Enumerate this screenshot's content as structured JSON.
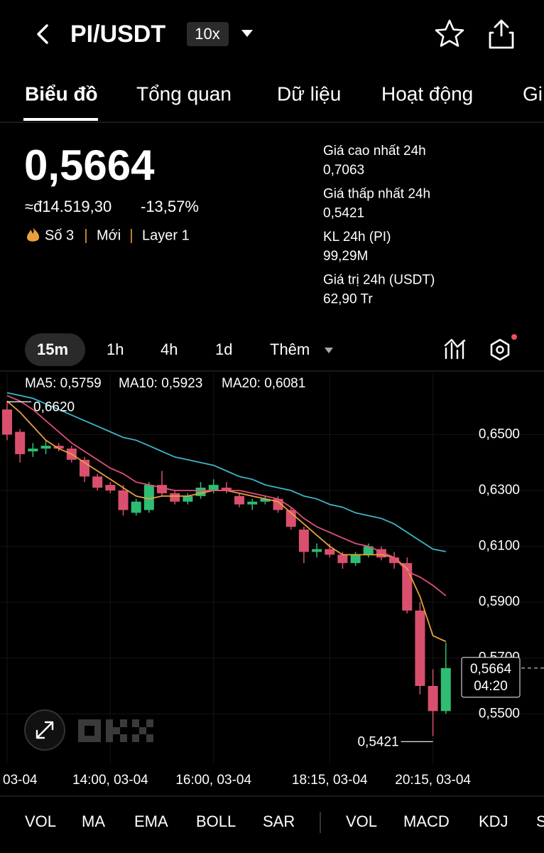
{
  "header": {
    "pair": "PI/USDT",
    "leverage": "10x"
  },
  "tabs": [
    "Biểu đồ",
    "Tổng quan",
    "Dữ liệu",
    "Hoạt động",
    "Gi"
  ],
  "ticker": {
    "price": "0,5664",
    "fiat": "≈đ14.519,30",
    "change": "-13,57%",
    "tags": [
      "Số 3",
      "Mới",
      "Layer 1"
    ],
    "stats": [
      {
        "label": "Giá cao nhất 24h",
        "value": "0,7063"
      },
      {
        "label": "Giá thấp nhất 24h",
        "value": "0,5421"
      },
      {
        "label": "KL 24h (PI)",
        "value": "99,29M"
      },
      {
        "label": "Giá trị 24h (USDT)",
        "value": "62,90 Tr"
      }
    ]
  },
  "intervals": [
    "15m",
    "1h",
    "4h",
    "1d",
    "Thêm"
  ],
  "indicators": [
    "VOL",
    "MA",
    "EMA",
    "BOLL",
    "SAR",
    "VOL",
    "MACD",
    "KDJ",
    "S"
  ],
  "chart_data": {
    "type": "candlestick",
    "categories": [
      "03-04",
      null,
      null,
      null,
      null,
      null,
      null,
      null,
      "14:00, 03-04",
      null,
      null,
      null,
      null,
      null,
      null,
      null,
      "16:00, 03-04",
      null,
      null,
      null,
      null,
      null,
      null,
      null,
      null,
      "18:15, 03-04",
      null,
      null,
      null,
      null,
      null,
      null,
      null,
      "20:15, 03-04",
      null
    ],
    "open": [
      0.659,
      0.651,
      0.644,
      0.645,
      0.646,
      0.645,
      0.641,
      0.635,
      0.632,
      0.63,
      0.622,
      0.623,
      0.632,
      0.629,
      0.626,
      0.628,
      0.63,
      0.631,
      0.628,
      0.625,
      0.626,
      0.627,
      0.623,
      0.616,
      0.608,
      0.609,
      0.607,
      0.604,
      0.607,
      0.609,
      0.606,
      0.604,
      0.587,
      0.56,
      0.551
    ],
    "high": [
      0.662,
      0.652,
      0.647,
      0.648,
      0.647,
      0.646,
      0.642,
      0.636,
      0.633,
      0.632,
      0.627,
      0.633,
      0.637,
      0.63,
      0.629,
      0.633,
      0.634,
      0.633,
      0.629,
      0.627,
      0.628,
      0.628,
      0.624,
      0.617,
      0.611,
      0.611,
      0.608,
      0.608,
      0.611,
      0.61,
      0.608,
      0.606,
      0.59,
      0.566,
      0.5755
    ],
    "low": [
      0.648,
      0.64,
      0.642,
      0.643,
      0.644,
      0.64,
      0.633,
      0.63,
      0.629,
      0.621,
      0.621,
      0.622,
      0.628,
      0.625,
      0.625,
      0.627,
      0.629,
      0.629,
      0.624,
      0.623,
      0.625,
      0.622,
      0.616,
      0.604,
      0.606,
      0.606,
      0.602,
      0.603,
      0.606,
      0.605,
      0.602,
      0.586,
      0.557,
      0.5421,
      0.55
    ],
    "close": [
      0.65,
      0.643,
      0.645,
      0.646,
      0.645,
      0.641,
      0.635,
      0.631,
      0.63,
      0.623,
      0.626,
      0.632,
      0.629,
      0.626,
      0.628,
      0.631,
      0.632,
      0.63,
      0.625,
      0.626,
      0.627,
      0.623,
      0.617,
      0.608,
      0.609,
      0.607,
      0.604,
      0.607,
      0.61,
      0.606,
      0.604,
      0.587,
      0.56,
      0.551,
      0.5664
    ],
    "up_color": "#2ebd73",
    "down_color": "#d9506e",
    "series": [
      {
        "name": "MA5: 0,5759",
        "color": "#e6a23c",
        "values": [
          0.662,
          0.658,
          0.653,
          0.648,
          0.645,
          0.643,
          0.64,
          0.637,
          0.634,
          0.631,
          0.628,
          0.627,
          0.628,
          0.628,
          0.628,
          0.629,
          0.63,
          0.63,
          0.629,
          0.628,
          0.627,
          0.626,
          0.622,
          0.618,
          0.614,
          0.61,
          0.607,
          0.607,
          0.607,
          0.607,
          0.606,
          0.602,
          0.592,
          0.578,
          0.5759
        ]
      },
      {
        "name": "MA10: 0,5923",
        "color": "#e0507a",
        "values": [
          0.664,
          0.662,
          0.659,
          0.655,
          0.651,
          0.647,
          0.644,
          0.641,
          0.638,
          0.636,
          0.633,
          0.632,
          0.631,
          0.63,
          0.63,
          0.63,
          0.63,
          0.63,
          0.63,
          0.629,
          0.628,
          0.627,
          0.624,
          0.62,
          0.617,
          0.615,
          0.613,
          0.611,
          0.61,
          0.608,
          0.606,
          0.601,
          0.599,
          0.596,
          0.5923
        ]
      },
      {
        "name": "MA20: 0,6081",
        "color": "#3fb5c8",
        "values": [
          0.665,
          0.664,
          0.663,
          0.661,
          0.659,
          0.657,
          0.655,
          0.653,
          0.651,
          0.649,
          0.648,
          0.646,
          0.644,
          0.642,
          0.641,
          0.64,
          0.639,
          0.637,
          0.635,
          0.634,
          0.632,
          0.631,
          0.63,
          0.628,
          0.627,
          0.625,
          0.624,
          0.622,
          0.621,
          0.62,
          0.618,
          0.615,
          0.612,
          0.609,
          0.6081
        ]
      }
    ],
    "ylim": [
      0.532,
      0.672
    ],
    "yticks": [
      {
        "value": 0.65,
        "label": "0,6500"
      },
      {
        "value": 0.63,
        "label": "0,6300"
      },
      {
        "value": 0.61,
        "label": "0,6100"
      },
      {
        "value": 0.59,
        "label": "0,5900"
      },
      {
        "value": 0.57,
        "label": "0,5700"
      },
      {
        "value": 0.55,
        "label": "0,5500"
      }
    ],
    "grid": true,
    "max_label": "0,6620",
    "min_label": "0,5421",
    "last_price_label": "0,5664",
    "countdown": "04:20"
  }
}
